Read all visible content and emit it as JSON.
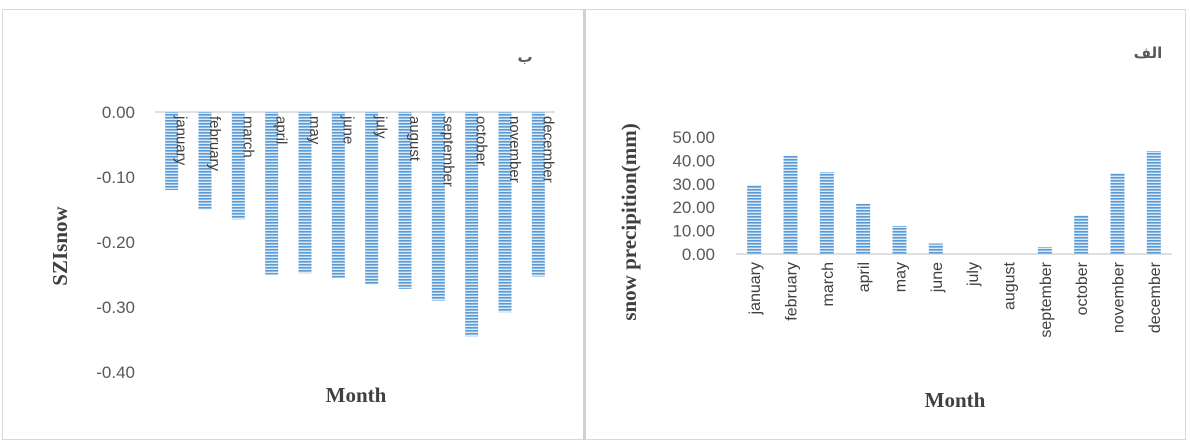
{
  "chart_data": [
    {
      "type": "bar",
      "panel_label": "ب",
      "categories": [
        "january",
        "february",
        "march",
        "april",
        "may",
        "june",
        "july",
        "august",
        "september",
        "october",
        "november",
        "december"
      ],
      "values": [
        -0.12,
        -0.15,
        -0.165,
        -0.25,
        -0.248,
        -0.255,
        -0.265,
        -0.272,
        -0.29,
        -0.345,
        -0.308,
        -0.253
      ],
      "ylabel": "SZIsnow",
      "xlabel": "Month",
      "ylim": [
        -0.4,
        0.0
      ],
      "yticks": [
        0.0,
        -0.1,
        -0.2,
        -0.3,
        -0.4
      ],
      "grid": false,
      "legend": "none",
      "bar_color": "#5b9bd5"
    },
    {
      "type": "bar",
      "panel_label": "الف",
      "categories": [
        "january",
        "february",
        "march",
        "april",
        "may",
        "june",
        "july",
        "august",
        "september",
        "october",
        "november",
        "december"
      ],
      "values": [
        29.5,
        42.0,
        35.0,
        21.5,
        12.0,
        4.5,
        0.0,
        0.0,
        3.0,
        16.5,
        34.5,
        44.0
      ],
      "ylabel": "snow precipition(mm)",
      "xlabel": "Month",
      "ylim": [
        0.0,
        50.0
      ],
      "yticks": [
        0.0,
        10.0,
        20.0,
        30.0,
        40.0,
        50.0
      ],
      "grid": false,
      "legend": "none",
      "bar_color": "#5b9bd5"
    }
  ]
}
